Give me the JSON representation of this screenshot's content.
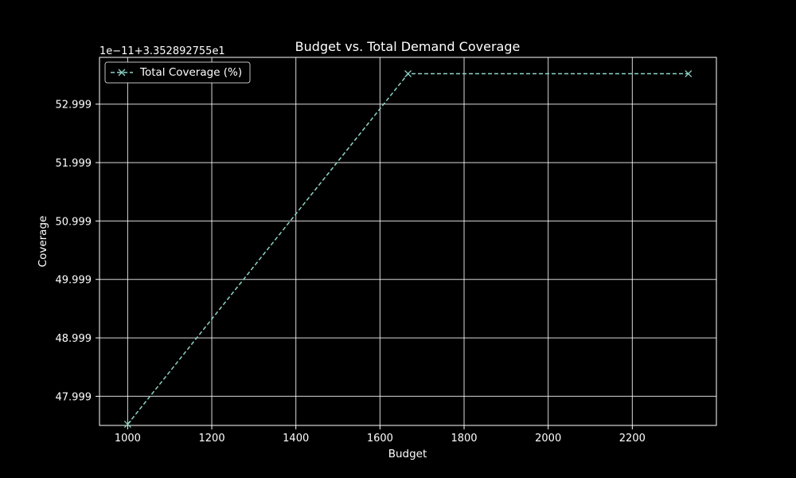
{
  "chart_data": {
    "type": "line",
    "title": "Budget vs. Total Demand Coverage",
    "xlabel": "Budget",
    "ylabel": "Coverage",
    "offset_label": "1e−11+3.352892755e1",
    "xlim": [
      933,
      2400
    ],
    "ylim": [
      47.5,
      53.8
    ],
    "x_ticks": [
      1000,
      1200,
      1400,
      1600,
      1800,
      2000,
      2200
    ],
    "x_tick_labels": [
      "1000",
      "1200",
      "1400",
      "1600",
      "1800",
      "2000",
      "2200"
    ],
    "y_ticks": [
      47.999,
      48.999,
      49.999,
      50.999,
      51.999,
      52.999
    ],
    "y_tick_labels": [
      "47.999",
      "48.999",
      "49.999",
      "50.999",
      "51.999",
      "52.999"
    ],
    "grid": true,
    "legend_position": "top-left",
    "colors": {
      "background": "#000000",
      "foreground": "#ffffff",
      "series": "#8dd3c7"
    },
    "series": [
      {
        "name": "Total Coverage (%)",
        "line_style": "dashed",
        "marker": "x",
        "x": [
          1000,
          1666.67,
          2333.33
        ],
        "y": [
          47.52,
          53.52,
          53.52
        ]
      }
    ]
  }
}
